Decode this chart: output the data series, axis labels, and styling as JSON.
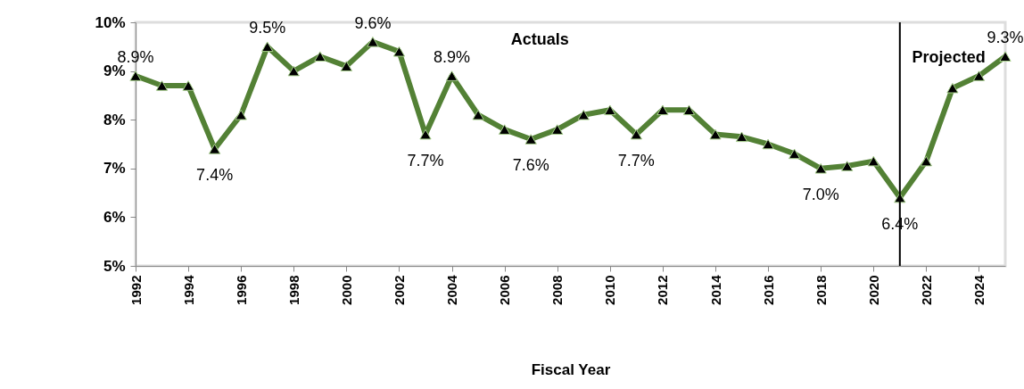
{
  "chart_data": {
    "type": "line",
    "xlabel": "Fiscal Year",
    "x": [
      1992,
      1993,
      1994,
      1995,
      1996,
      1997,
      1998,
      1999,
      2000,
      2001,
      2002,
      2003,
      2004,
      2005,
      2006,
      2007,
      2008,
      2009,
      2010,
      2011,
      2012,
      2013,
      2014,
      2015,
      2016,
      2017,
      2018,
      2019,
      2020,
      2021,
      2022,
      2023,
      2024,
      2025
    ],
    "series": [
      {
        "color": "#538135",
        "values": [
          8.9,
          8.7,
          8.7,
          7.4,
          8.1,
          9.5,
          9.0,
          9.3,
          9.1,
          9.6,
          9.4,
          7.7,
          8.9,
          8.1,
          7.8,
          7.6,
          7.8,
          8.1,
          8.2,
          7.7,
          8.2,
          8.2,
          7.7,
          7.65,
          7.5,
          7.3,
          7.0,
          7.05,
          7.15,
          6.4,
          7.15,
          8.65,
          8.9,
          9.3
        ],
        "value_labels": [
          "8.9%",
          null,
          null,
          "7.4%",
          null,
          "9.5%",
          null,
          null,
          null,
          "9.6%",
          null,
          "7.7%",
          "8.9%",
          null,
          null,
          "7.6%",
          null,
          null,
          null,
          "7.7%",
          null,
          null,
          null,
          null,
          null,
          null,
          "7.0%",
          null,
          null,
          "6.4%",
          null,
          null,
          null,
          "9.3%"
        ]
      }
    ],
    "xlim": [
      1992,
      2025
    ],
    "xticks": [
      1992,
      1994,
      1996,
      1998,
      2000,
      2002,
      2004,
      2006,
      2008,
      2010,
      2012,
      2014,
      2016,
      2018,
      2020,
      2022,
      2024
    ],
    "ylim": [
      5,
      10
    ],
    "yticks": [
      {
        "value": 5,
        "label": "5%"
      },
      {
        "value": 6,
        "label": "6%"
      },
      {
        "value": 7,
        "label": "7%"
      },
      {
        "value": 8,
        "label": "8%"
      },
      {
        "value": 9,
        "label": "9%"
      },
      {
        "value": 10,
        "label": "10%"
      }
    ],
    "ref_lines": [
      {
        "axis": "x",
        "value": 2021,
        "color": "#000000"
      }
    ],
    "annotations": [
      "Actuals",
      "Projected"
    ],
    "marker": "triangle",
    "grid": false
  }
}
